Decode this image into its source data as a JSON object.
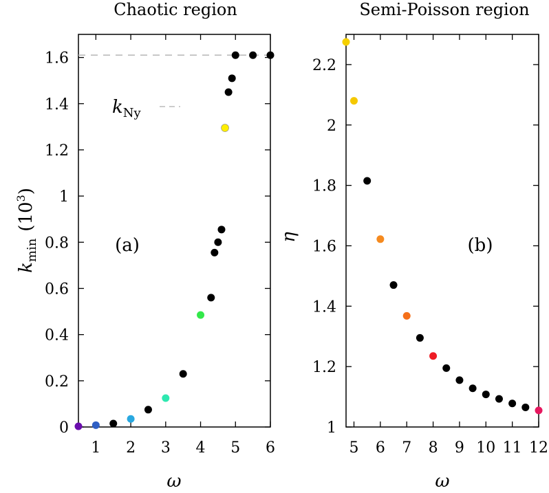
{
  "chart_data": [
    {
      "type": "scatter",
      "title": "Chaotic region",
      "xlabel": "ω",
      "ylabel": "k_min (10^3)",
      "ylabel_parts": {
        "symbol": "k",
        "subscript": "min",
        "unit_base": "(10",
        "unit_exp": "3",
        "unit_close": ")"
      },
      "panel_label": "(a)",
      "annotation": {
        "symbol": "k",
        "subscript": "Ny"
      },
      "xlim": [
        0.5,
        6
      ],
      "ylim": [
        0,
        1.7
      ],
      "xticks": [
        1,
        2,
        3,
        4,
        5,
        6
      ],
      "yticks": [
        0,
        0.2,
        0.4,
        0.6,
        0.8,
        1,
        1.2,
        1.4,
        1.6
      ],
      "xtick_labels": [
        "1",
        "2",
        "3",
        "4",
        "5",
        "6"
      ],
      "ytick_labels": [
        "0",
        "0.2",
        "0.4",
        "0.6",
        "0.8",
        "1",
        "1.2",
        "1.4",
        "1.6"
      ],
      "reference_line_y": 1.61,
      "grid": false,
      "points": [
        {
          "x": 0.5,
          "y": 0.003,
          "color": "#6a0dad"
        },
        {
          "x": 1.0,
          "y": 0.008,
          "color": "#2f5fc4"
        },
        {
          "x": 1.5,
          "y": 0.015,
          "color": "#000000"
        },
        {
          "x": 2.0,
          "y": 0.035,
          "color": "#29a8e0"
        },
        {
          "x": 2.5,
          "y": 0.075,
          "color": "#000000"
        },
        {
          "x": 3.0,
          "y": 0.125,
          "color": "#2ee8b0"
        },
        {
          "x": 3.5,
          "y": 0.23,
          "color": "#000000"
        },
        {
          "x": 4.0,
          "y": 0.485,
          "color": "#33e84a"
        },
        {
          "x": 4.3,
          "y": 0.56,
          "color": "#000000"
        },
        {
          "x": 4.4,
          "y": 0.755,
          "color": "#000000"
        },
        {
          "x": 4.5,
          "y": 0.8,
          "color": "#000000"
        },
        {
          "x": 4.6,
          "y": 0.855,
          "color": "#000000"
        },
        {
          "x": 4.7,
          "y": 1.295,
          "color": "#ffee00"
        },
        {
          "x": 4.8,
          "y": 1.45,
          "color": "#000000"
        },
        {
          "x": 4.9,
          "y": 1.51,
          "color": "#000000"
        },
        {
          "x": 5.0,
          "y": 1.61,
          "color": "#000000"
        },
        {
          "x": 5.5,
          "y": 1.61,
          "color": "#000000"
        },
        {
          "x": 6.0,
          "y": 1.61,
          "color": "#000000"
        }
      ]
    },
    {
      "type": "scatter",
      "title": "Semi-Poisson region",
      "xlabel": "ω",
      "ylabel": "η",
      "panel_label": "(b)",
      "xlim": [
        4.7,
        12
      ],
      "ylim": [
        1.0,
        2.3
      ],
      "xticks": [
        5,
        6,
        7,
        8,
        9,
        10,
        11,
        12
      ],
      "yticks": [
        1,
        1.2,
        1.4,
        1.6,
        1.8,
        2,
        2.2
      ],
      "xtick_labels": [
        "5",
        "6",
        "7",
        "8",
        "9",
        "10",
        "11",
        "12"
      ],
      "ytick_labels": [
        "1",
        "1.2",
        "1.4",
        "1.6",
        "1.8",
        "2",
        "2.2"
      ],
      "grid": false,
      "points": [
        {
          "x": 4.7,
          "y": 2.275,
          "color": "#f5d000"
        },
        {
          "x": 5.0,
          "y": 2.08,
          "color": "#f5c800"
        },
        {
          "x": 5.5,
          "y": 1.815,
          "color": "#000000"
        },
        {
          "x": 6.0,
          "y": 1.622,
          "color": "#f58a1f"
        },
        {
          "x": 6.5,
          "y": 1.47,
          "color": "#000000"
        },
        {
          "x": 7.0,
          "y": 1.368,
          "color": "#f5701a"
        },
        {
          "x": 7.5,
          "y": 1.295,
          "color": "#000000"
        },
        {
          "x": 8.0,
          "y": 1.235,
          "color": "#ee1c25"
        },
        {
          "x": 8.5,
          "y": 1.195,
          "color": "#000000"
        },
        {
          "x": 9.0,
          "y": 1.155,
          "color": "#000000"
        },
        {
          "x": 9.5,
          "y": 1.128,
          "color": "#000000"
        },
        {
          "x": 10.0,
          "y": 1.108,
          "color": "#000000"
        },
        {
          "x": 10.5,
          "y": 1.093,
          "color": "#000000"
        },
        {
          "x": 11.0,
          "y": 1.078,
          "color": "#000000"
        },
        {
          "x": 11.5,
          "y": 1.065,
          "color": "#000000"
        },
        {
          "x": 12.0,
          "y": 1.055,
          "color": "#e6185f"
        }
      ]
    }
  ]
}
